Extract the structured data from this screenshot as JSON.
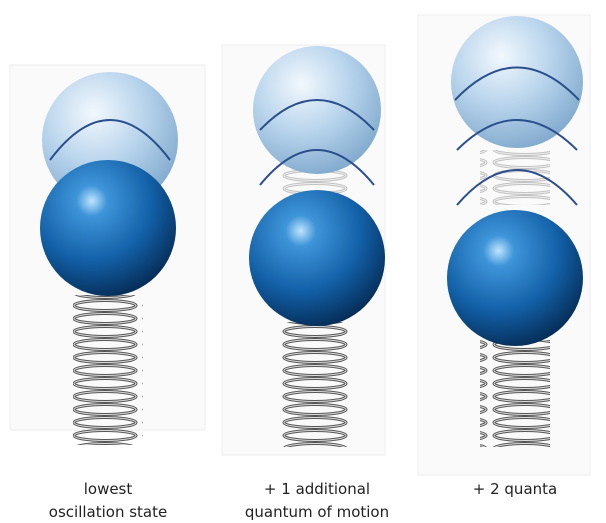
{
  "panels": [
    {
      "caption_lines": [
        "lowest",
        "oscillation state"
      ]
    },
    {
      "caption_lines": [
        "+ 1 additional",
        "quantum of motion"
      ]
    },
    {
      "caption_lines": [
        "+ 2 quanta"
      ]
    }
  ]
}
